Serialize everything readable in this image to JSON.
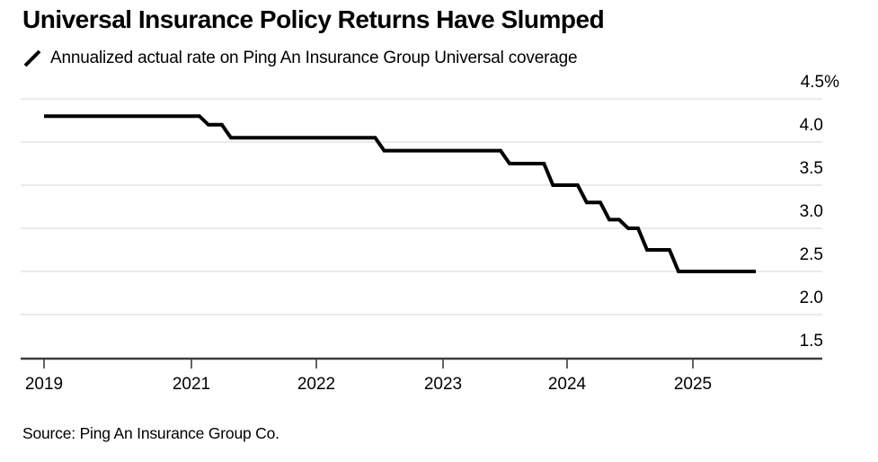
{
  "header": {
    "title": "Universal Insurance Policy Returns Have Slumped",
    "legend": "Annualized actual rate on Ping An Insurance Group Universal coverage"
  },
  "footer": {
    "source": "Source: Ping An Insurance Group Co."
  },
  "colors": {
    "line": "#000000",
    "grid": "#e4e4e4",
    "axis": "#3d3d3d",
    "text": "#000000",
    "background": "#ffffff"
  },
  "chart_data": {
    "type": "line",
    "variant": "step",
    "title": "Universal Insurance Policy Returns Have Slumped",
    "legend_label": "Annualized actual rate on Ping An Insurance Group Universal coverage",
    "unit": "%",
    "grid": "horizontal",
    "legend_position": "top-left",
    "ylim": [
      1.5,
      4.5
    ],
    "x_tick_labels": [
      "2019",
      "2021",
      "2022",
      "2023",
      "2024",
      "2025"
    ],
    "y_tick_labels": [
      "4.5%",
      "4.0",
      "3.5",
      "3.0",
      "2.5",
      "2.0",
      "1.5"
    ],
    "series": [
      {
        "name": "Annualized actual rate",
        "color": "#000000",
        "steps": [
          {
            "from": 2019.0,
            "rate": 4.3
          },
          {
            "from": 2021.1,
            "rate": 4.2
          },
          {
            "from": 2021.28,
            "rate": 4.05
          },
          {
            "from": 2022.5,
            "rate": 3.9
          },
          {
            "from": 2023.5,
            "rate": 3.75
          },
          {
            "from": 2023.85,
            "rate": 3.5
          },
          {
            "from": 2024.12,
            "rate": 3.3
          },
          {
            "from": 2024.3,
            "rate": 3.1
          },
          {
            "from": 2024.45,
            "rate": 3.0
          },
          {
            "from": 2024.6,
            "rate": 2.75
          },
          {
            "from": 2024.85,
            "rate": 2.5
          }
        ],
        "end": 2025.5
      }
    ]
  }
}
